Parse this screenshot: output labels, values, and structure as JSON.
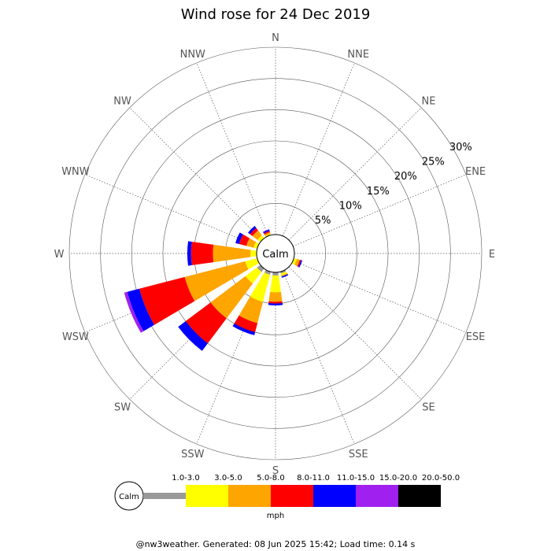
{
  "chart_data": {
    "type": "wind-rose",
    "title": "Wind rose for 24 Dec 2019",
    "calm_label": "Calm",
    "directions": [
      "N",
      "NNE",
      "NE",
      "ENE",
      "E",
      "ESE",
      "SE",
      "SSE",
      "S",
      "SSW",
      "SW",
      "WSW",
      "W",
      "WNW",
      "NW",
      "NNW"
    ],
    "radial_ticks": [
      5,
      10,
      15,
      20,
      25,
      30
    ],
    "radial_tick_labels": [
      "5%",
      "10%",
      "15%",
      "20%",
      "25%",
      "30%"
    ],
    "rmax": 30,
    "unit_label": "mph",
    "grid": true,
    "legend_position": "bottom",
    "speed_bins": [
      {
        "label": "1.0-3.0",
        "color": "#999999"
      },
      {
        "label": "3.0-5.0",
        "color": "#ffff00"
      },
      {
        "label": "5.0-8.0",
        "color": "#ffa500"
      },
      {
        "label": "8.0-11.0",
        "color": "#ff0000"
      },
      {
        "label": "11.0-15.0",
        "color": "#0000ff"
      },
      {
        "label": "15.0-20.0",
        "color": "#a020f0"
      },
      {
        "label": "20.0-50.0",
        "color": "#000000"
      }
    ],
    "series": [
      {
        "direction": "N",
        "values": [
          0,
          0,
          0,
          0,
          0,
          0,
          0
        ]
      },
      {
        "direction": "NNE",
        "values": [
          0,
          0,
          0,
          0,
          0,
          0,
          0
        ]
      },
      {
        "direction": "NE",
        "values": [
          0,
          0,
          0,
          0,
          0,
          0,
          0
        ]
      },
      {
        "direction": "ENE",
        "values": [
          0,
          0,
          0,
          0,
          0,
          0,
          0
        ]
      },
      {
        "direction": "E",
        "values": [
          0,
          0,
          0,
          0,
          0,
          0,
          0
        ]
      },
      {
        "direction": "ESE",
        "values": [
          0,
          0.5,
          0.5,
          0.2,
          0.2,
          0,
          0
        ]
      },
      {
        "direction": "SE",
        "values": [
          0,
          0,
          0,
          0,
          0,
          0,
          0
        ]
      },
      {
        "direction": "SSE",
        "values": [
          0.3,
          0.3,
          0.2,
          0,
          0.2,
          0,
          0
        ]
      },
      {
        "direction": "S",
        "values": [
          0.5,
          2.7,
          1.5,
          0.3,
          0.3,
          0,
          0
        ]
      },
      {
        "direction": "SSW",
        "values": [
          0.5,
          4.5,
          3.5,
          1.5,
          0.5,
          0,
          0
        ]
      },
      {
        "direction": "SW",
        "values": [
          0.7,
          2.3,
          7.0,
          5.0,
          1.5,
          0,
          0
        ]
      },
      {
        "direction": "WSW",
        "values": [
          0,
          2.0,
          10.0,
          7.5,
          2.0,
          0.5,
          0
        ]
      },
      {
        "direction": "W",
        "values": [
          0,
          1.0,
          6.0,
          3.5,
          0.6,
          0,
          0
        ]
      },
      {
        "direction": "WNW",
        "values": [
          0,
          0.6,
          1.2,
          1.2,
          0.6,
          0,
          0
        ]
      },
      {
        "direction": "NW",
        "values": [
          0,
          0.6,
          1.0,
          0.5,
          0.4,
          0,
          0
        ]
      },
      {
        "direction": "NNW",
        "values": [
          0,
          0.2,
          0.3,
          0.2,
          0.2,
          0.1,
          0
        ]
      }
    ]
  },
  "footer": "@nw3weather. Generated: 08 Jun 2025 15:42; Load time: 0.14 s"
}
